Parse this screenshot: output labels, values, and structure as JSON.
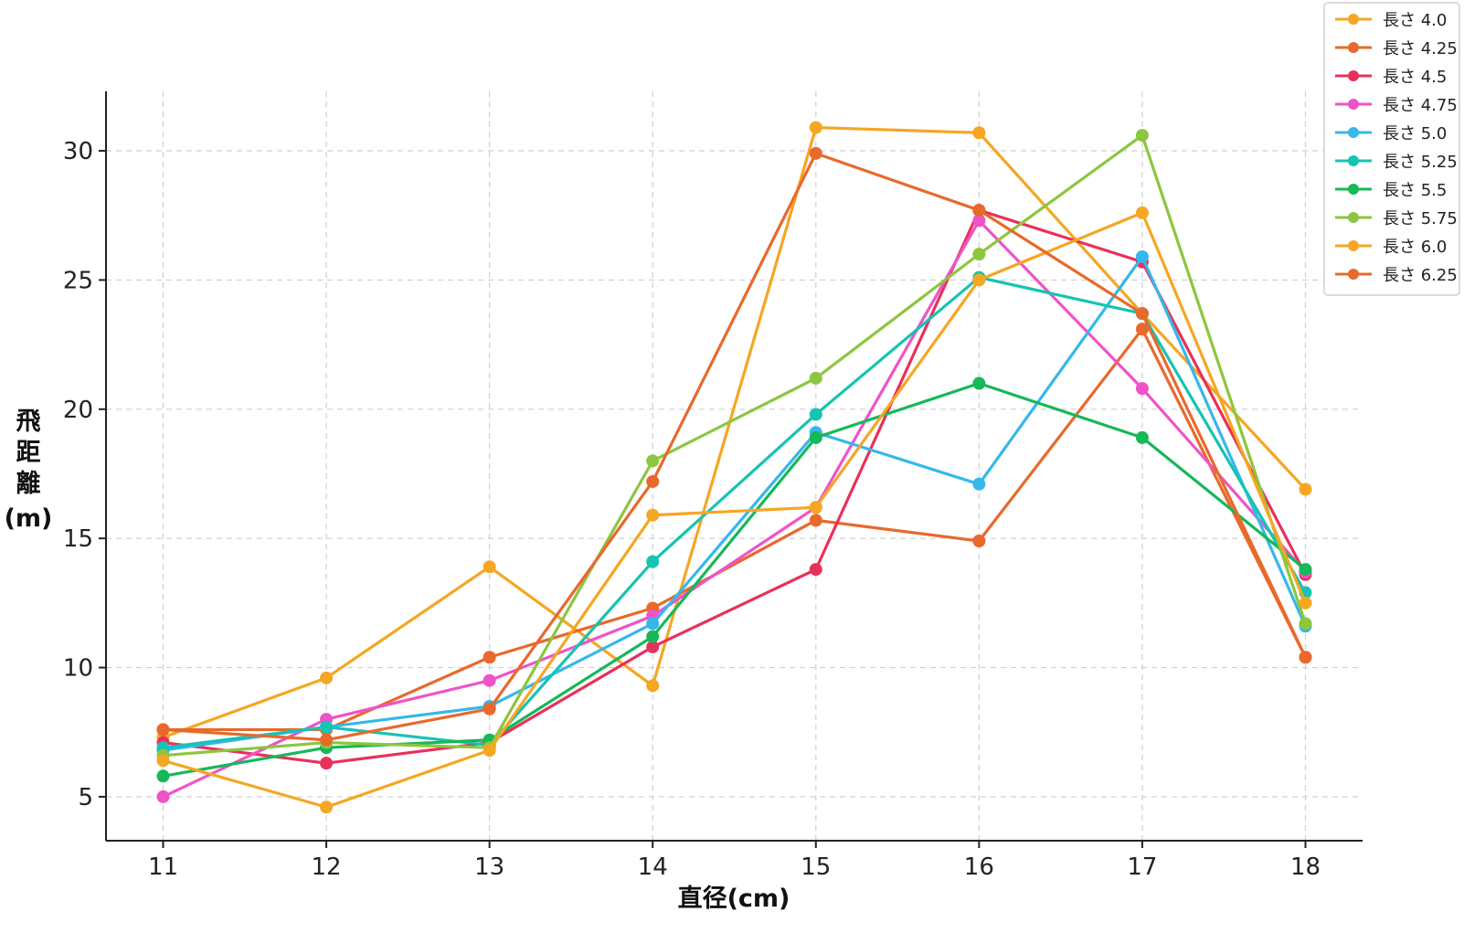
{
  "chart_data": {
    "type": "line",
    "title": "",
    "xlabel": "直径(cm)",
    "ylabel": "飛距離(m)",
    "x": [
      11,
      12,
      13,
      14,
      15,
      16,
      17,
      18
    ],
    "xlim": [
      10.65,
      18.35
    ],
    "ylim": [
      3.3,
      32.3
    ],
    "yticks": [
      5,
      10,
      15,
      20,
      25,
      30
    ],
    "grid": true,
    "legend_position": "top-right",
    "series": [
      {
        "name": "長さ 4.0",
        "color": "#f5a623",
        "values": [
          7.3,
          9.6,
          13.9,
          9.3,
          30.9,
          30.7,
          23.7,
          16.9
        ]
      },
      {
        "name": "長さ 4.25",
        "color": "#e8692c",
        "values": [
          7.6,
          7.6,
          10.4,
          12.3,
          15.7,
          14.9,
          23.1,
          10.4
        ]
      },
      {
        "name": "長さ 4.5",
        "color": "#e8315a",
        "values": [
          7.1,
          6.3,
          7.1,
          10.8,
          13.8,
          27.7,
          25.7,
          13.6
        ]
      },
      {
        "name": "長さ 4.75",
        "color": "#ef53c8",
        "values": [
          5.0,
          8.0,
          9.5,
          12.0,
          16.2,
          27.3,
          20.8,
          13.7
        ]
      },
      {
        "name": "長さ 5.0",
        "color": "#36b7ea",
        "values": [
          6.8,
          7.7,
          8.5,
          11.7,
          19.1,
          17.1,
          25.9,
          11.6
        ]
      },
      {
        "name": "長さ 5.25",
        "color": "#17c3b2",
        "values": [
          6.9,
          7.7,
          7.0,
          14.1,
          19.8,
          25.1,
          23.7,
          12.9
        ]
      },
      {
        "name": "長さ 5.5",
        "color": "#16b858",
        "values": [
          5.8,
          6.9,
          7.2,
          11.2,
          18.9,
          21.0,
          18.9,
          13.8
        ]
      },
      {
        "name": "長さ 5.75",
        "color": "#8cc63f",
        "values": [
          6.6,
          7.1,
          6.9,
          18.0,
          21.2,
          26.0,
          30.6,
          11.7
        ]
      },
      {
        "name": "長さ 6.0",
        "color": "#f5a623",
        "values": [
          6.4,
          4.6,
          6.8,
          15.9,
          16.2,
          25.0,
          27.6,
          12.5
        ]
      },
      {
        "name": "長さ 6.25",
        "color": "#e8692c",
        "values": [
          7.6,
          7.2,
          8.4,
          17.2,
          29.9,
          27.7,
          23.7,
          10.4
        ]
      }
    ]
  }
}
